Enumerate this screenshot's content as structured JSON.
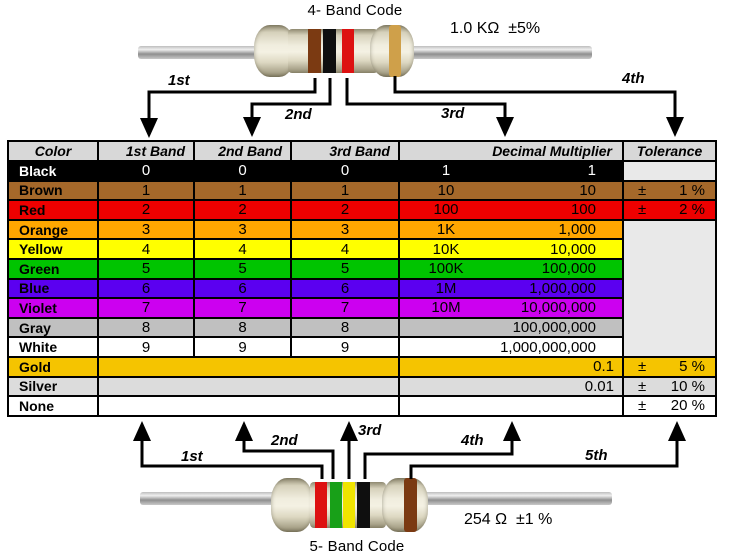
{
  "top": {
    "title": "4- Band Code",
    "value_label": "1.0 KΩ  ±5%",
    "arrow_labels": [
      "1st",
      "2nd",
      "3rd",
      "4th"
    ],
    "band_colors": [
      "brown",
      "black",
      "red",
      "gold"
    ]
  },
  "bottom": {
    "title": "5- Band Code",
    "value_label": "254 Ω  ±1 %",
    "arrow_labels": [
      "1st",
      "2nd",
      "3rd",
      "4th",
      "5th"
    ],
    "band_colors": [
      "red",
      "green",
      "yellow",
      "black",
      "brown"
    ]
  },
  "band_palette": {
    "brown": "#7b3a12",
    "black": "#0f0f0f",
    "red": "#dd1111",
    "gold": "#cfa04a",
    "green": "#18a018",
    "yellow": "#f0e400"
  },
  "table": {
    "columns": [
      "Color",
      "1st Band",
      "2nd Band",
      "3rd Band",
      "Decimal Multiplier",
      "Tolerance"
    ],
    "empty_tolerance_bg": "#e9e9e9",
    "header_bg": "#d8d8d8",
    "rows": [
      {
        "name": "Black",
        "b1": "0",
        "b2": "0",
        "b3": "0",
        "mult_short": "1",
        "mult_full": "1",
        "tol_sign": "",
        "tol_value": "",
        "bg": "#000000",
        "fg": "#ffffff",
        "tol_empty": true
      },
      {
        "name": "Brown",
        "b1": "1",
        "b2": "1",
        "b3": "1",
        "mult_short": "10",
        "mult_full": "10",
        "tol_sign": "±",
        "tol_value": "1 %",
        "bg": "#a5682a",
        "fg": "#000000"
      },
      {
        "name": "Red",
        "b1": "2",
        "b2": "2",
        "b3": "2",
        "mult_short": "100",
        "mult_full": "100",
        "tol_sign": "±",
        "tol_value": "2 %",
        "bg": "#ee0000",
        "fg": "#000000"
      },
      {
        "name": "Orange",
        "b1": "3",
        "b2": "3",
        "b3": "3",
        "mult_short": "1K",
        "mult_full": "1,000",
        "bg": "#ffa600",
        "fg": "#000000",
        "tol_merged": true
      },
      {
        "name": "Yellow",
        "b1": "4",
        "b2": "4",
        "b3": "4",
        "mult_short": "10K",
        "mult_full": "10,000",
        "bg": "#ffff00",
        "fg": "#000000",
        "tol_merged": true
      },
      {
        "name": "Green",
        "b1": "5",
        "b2": "5",
        "b3": "5",
        "mult_short": "100K",
        "mult_full": "100,000",
        "bg": "#00c400",
        "fg": "#000000",
        "tol_merged": true
      },
      {
        "name": "Blue",
        "b1": "6",
        "b2": "6",
        "b3": "6",
        "mult_short": "1M",
        "mult_full": "1,000,000",
        "bg": "#5b00f0",
        "fg": "#000000",
        "tol_merged": true
      },
      {
        "name": "Violet",
        "b1": "7",
        "b2": "7",
        "b3": "7",
        "mult_short": "10M",
        "mult_full": "10,000,000",
        "bg": "#cc00f0",
        "fg": "#000000",
        "tol_merged": true
      },
      {
        "name": "Gray",
        "b1": "8",
        "b2": "8",
        "b3": "8",
        "mult_short": "",
        "mult_full": "100,000,000",
        "bg": "#c0c0c0",
        "fg": "#000000",
        "tol_merged": true
      },
      {
        "name": "White",
        "b1": "9",
        "b2": "9",
        "b3": "9",
        "mult_short": "",
        "mult_full": "1,000,000,000",
        "bg": "#ffffff",
        "fg": "#000000",
        "tol_merged": true
      },
      {
        "name": "Gold",
        "merged_bands": true,
        "mult_full": "0.1",
        "tol_sign": "±",
        "tol_value": "5 %",
        "bg": "#f5c400",
        "fg": "#000000"
      },
      {
        "name": "Silver",
        "merged_bands": true,
        "mult_full": "0.01",
        "tol_sign": "±",
        "tol_value": "10 %",
        "bg": "#dcdcdc",
        "fg": "#000000"
      },
      {
        "name": "None",
        "merged_bands": true,
        "mult_full": "",
        "tol_sign": "±",
        "tol_value": "20 %",
        "bg": "#ffffff",
        "fg": "#000000"
      }
    ]
  }
}
